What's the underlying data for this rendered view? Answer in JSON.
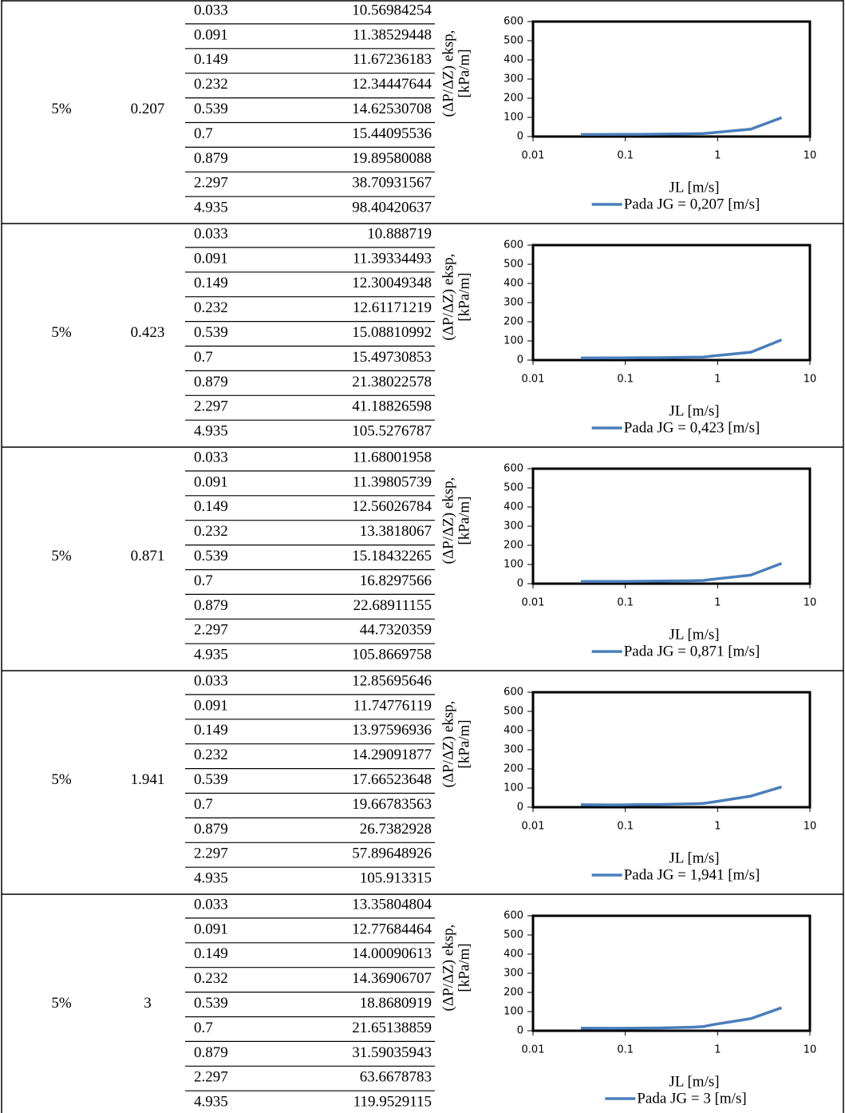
{
  "groups": [
    {
      "concentration": "5%",
      "jg": 0.207,
      "legend": "Pada JG = 0,207 [m/s]",
      "rows": [
        [
          0.033,
          10.56984254
        ],
        [
          0.091,
          11.38529448
        ],
        [
          0.149,
          11.67236183
        ],
        [
          0.232,
          12.34447644
        ],
        [
          0.539,
          14.62530708
        ],
        [
          0.7,
          15.44095536
        ],
        [
          0.879,
          19.89580088
        ],
        [
          2.297,
          38.70931567
        ],
        [
          4.935,
          98.40420637
        ]
      ]
    },
    {
      "concentration": "5%",
      "jg": 0.423,
      "legend": "Pada JG = 0,423 [m/s]",
      "rows": [
        [
          0.033,
          10.888719
        ],
        [
          0.091,
          11.39334493
        ],
        [
          0.149,
          12.30049348
        ],
        [
          0.232,
          12.61171219
        ],
        [
          0.539,
          15.08810992
        ],
        [
          0.7,
          15.49730853
        ],
        [
          0.879,
          21.38022578
        ],
        [
          2.297,
          41.18826598
        ],
        [
          4.935,
          105.5276787
        ]
      ]
    },
    {
      "concentration": "5%",
      "jg": 0.871,
      "legend": "Pada JG = 0,871 [m/s]",
      "rows": [
        [
          0.033,
          11.68001958
        ],
        [
          0.091,
          11.39805739
        ],
        [
          0.149,
          12.56026784
        ],
        [
          0.232,
          13.3818067
        ],
        [
          0.539,
          15.18432265
        ],
        [
          0.7,
          16.8297566
        ],
        [
          0.879,
          22.68911155
        ],
        [
          2.297,
          44.7320359
        ],
        [
          4.935,
          105.8669758
        ]
      ]
    },
    {
      "concentration": "5%",
      "jg": 1.941,
      "legend": "Pada JG = 1,941 [m/s]",
      "rows": [
        [
          0.033,
          12.85695646
        ],
        [
          0.091,
          11.74776119
        ],
        [
          0.149,
          13.97596936
        ],
        [
          0.232,
          14.29091877
        ],
        [
          0.539,
          17.66523648
        ],
        [
          0.7,
          19.66783563
        ],
        [
          0.879,
          26.7382928
        ],
        [
          2.297,
          57.89648926
        ],
        [
          4.935,
          105.913315
        ]
      ]
    },
    {
      "concentration": "5%",
      "jg": 3,
      "legend": "Pada JG = 3 [m/s]",
      "rows": [
        [
          0.033,
          13.35804804
        ],
        [
          0.091,
          12.77684464
        ],
        [
          0.149,
          14.00090613
        ],
        [
          0.232,
          14.36906707
        ],
        [
          0.539,
          18.8680919
        ],
        [
          0.7,
          21.65138859
        ],
        [
          0.879,
          31.59035943
        ],
        [
          2.297,
          63.6678783
        ],
        [
          4.935,
          119.9529115
        ]
      ]
    }
  ],
  "chart_axes": {
    "type": "line",
    "x_label": "JL [m/s]",
    "y_label": [
      "(ΔP/ΔZ) eksp,",
      "[kPa/m]"
    ],
    "xlim": [
      0.01,
      10
    ],
    "xticks": [
      0.01,
      0.1,
      1,
      10
    ],
    "log_x": true,
    "ylim": [
      0,
      600
    ],
    "yticks": [
      0,
      100,
      200,
      300,
      400,
      500,
      600
    ],
    "color": "#4a7ebb"
  }
}
